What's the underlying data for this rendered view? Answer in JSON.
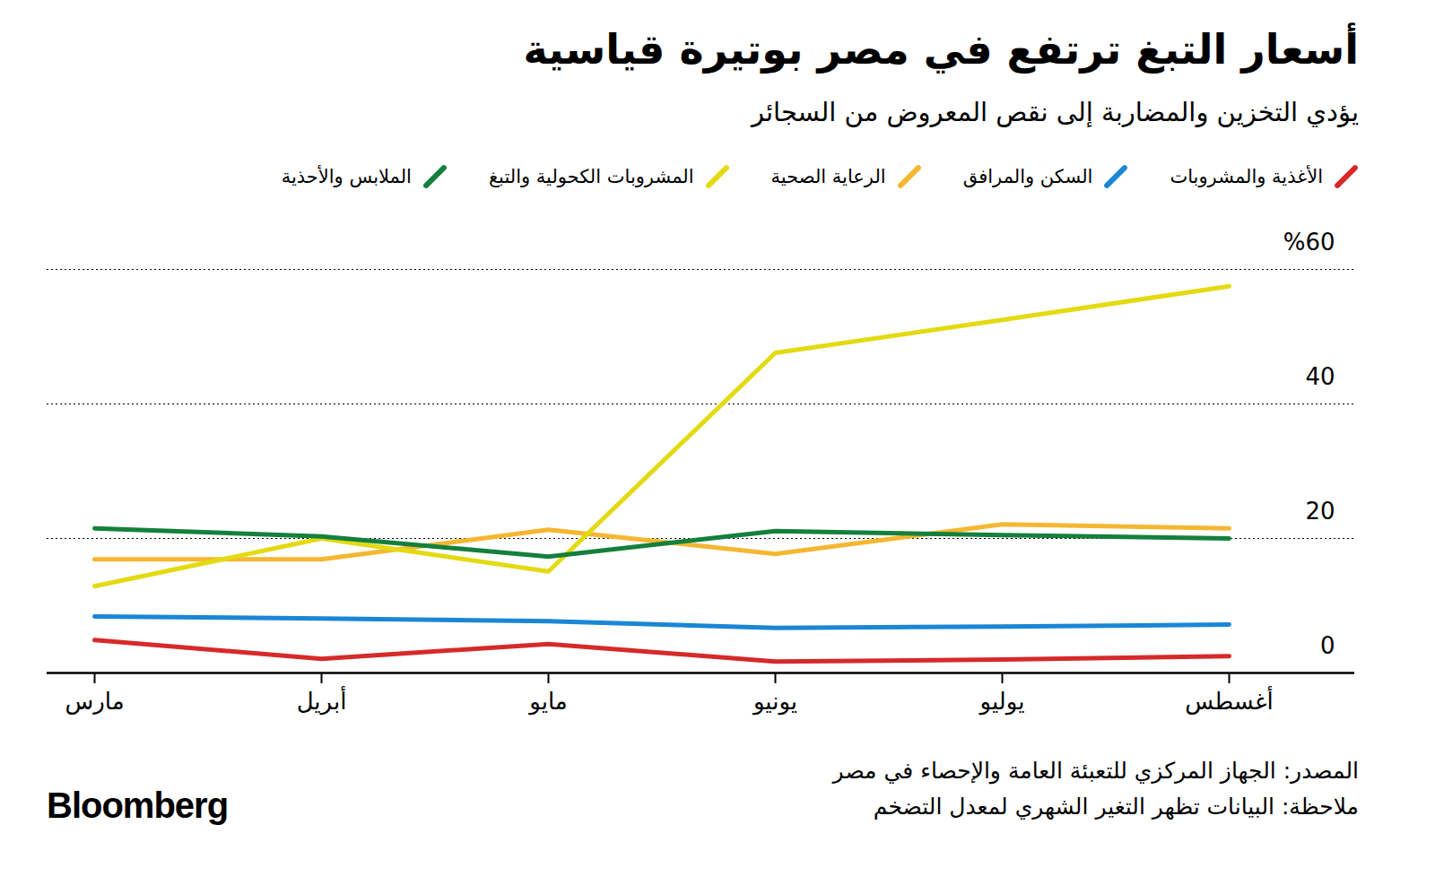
{
  "chart_data": {
    "type": "line",
    "title": "أسعار التبغ ترتفع في مصر بوتيرة قياسية",
    "subtitle": "يؤدي التخزين والمضاربة إلى نقص المعروض من السجائر",
    "categories": [
      "مارس",
      "أبريل",
      "مايو",
      "يونيو",
      "يوليو",
      "أغسطس"
    ],
    "series": [
      {
        "name": "الأغذية والمشروبات",
        "color": "#d62a2a",
        "values": [
          4.9,
          2.1,
          4.3,
          1.7,
          2.0,
          2.5
        ]
      },
      {
        "name": "السكن والمرافق",
        "color": "#1a86d6",
        "values": [
          8.4,
          8.1,
          7.7,
          6.7,
          6.9,
          7.2
        ]
      },
      {
        "name": "الرعاية الصحية",
        "color": "#f5b731",
        "values": [
          16.9,
          16.9,
          21.3,
          17.7,
          22.1,
          21.5
        ]
      },
      {
        "name": "المشروبات الكحولية والتبغ",
        "color": "#e3da12",
        "values": [
          12.9,
          20.0,
          15.1,
          47.6,
          52.5,
          57.5
        ]
      },
      {
        "name": "الملابس والأحذية",
        "color": "#14803c",
        "values": [
          21.5,
          20.3,
          17.3,
          21.1,
          20.5,
          20.0
        ]
      }
    ],
    "ylim": [
      0,
      60
    ],
    "yticks": [
      0,
      20,
      40,
      {
        "value": 60,
        "label": "%60"
      }
    ],
    "grid": true,
    "legend": "top",
    "source": "المصدر: الجهاز المركزي للتعبئة العامة والإحصاء في مصر",
    "note": "ملاحظة: البيانات تظهر التغير الشهري لمعدل التضخم",
    "logo": "Bloomberg"
  }
}
